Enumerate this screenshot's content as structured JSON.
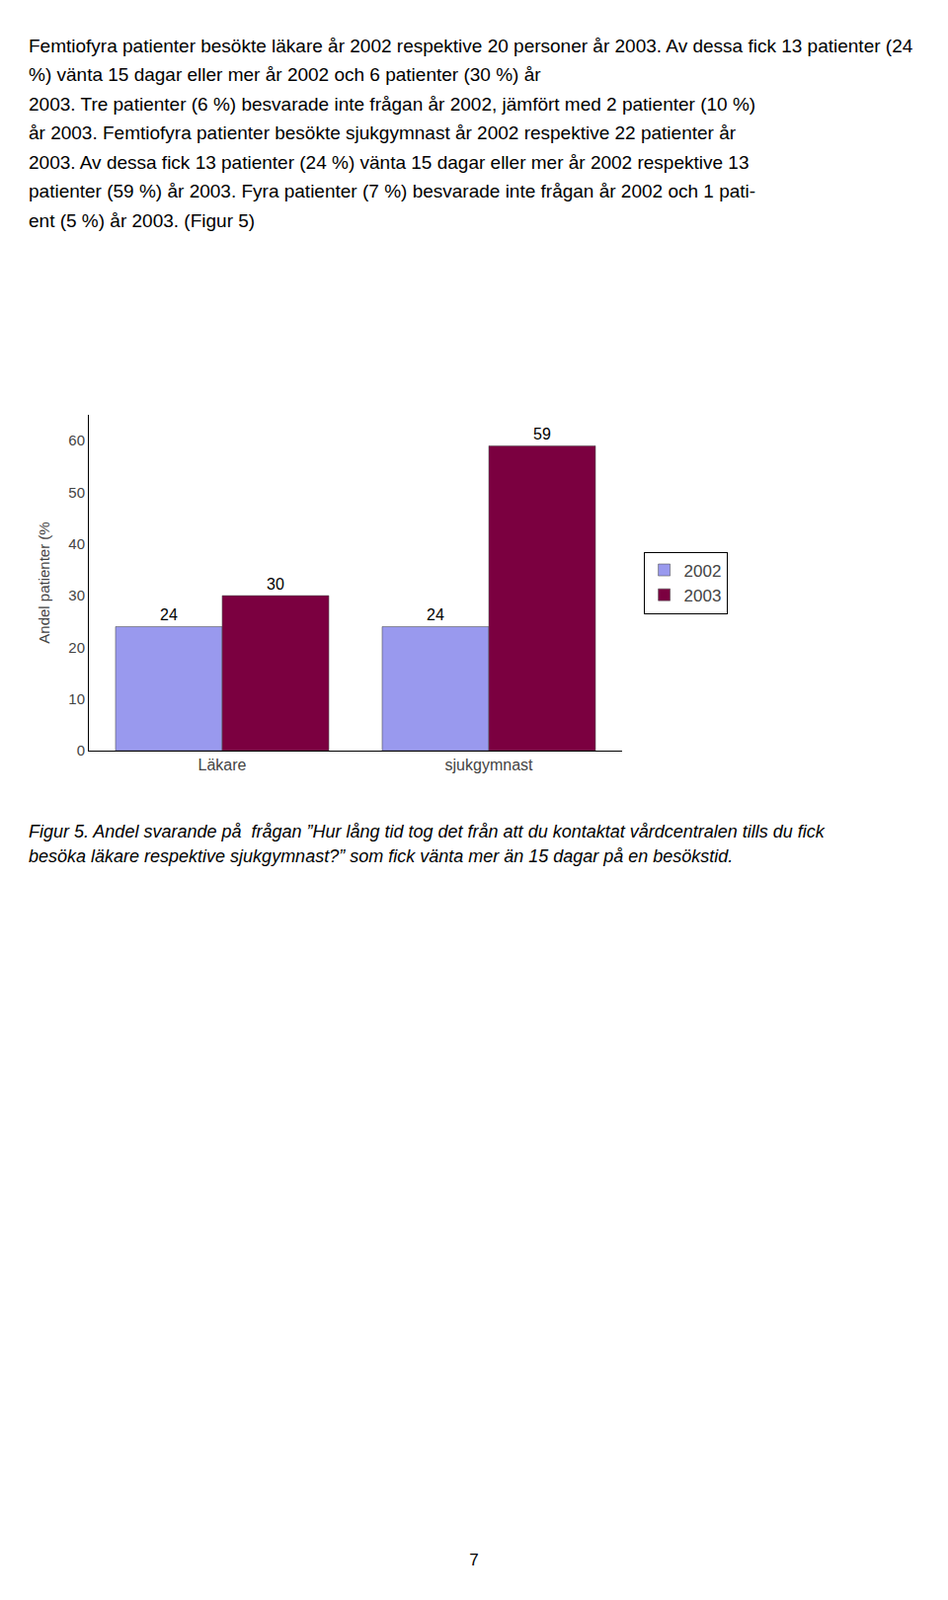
{
  "chart_data": {
    "type": "bar",
    "categories": [
      "Läkare",
      "sjukgymnast"
    ],
    "series": [
      {
        "name": "2002",
        "color": "#9999ee",
        "values": [
          24,
          24
        ]
      },
      {
        "name": "2003",
        "color": "#7b0040",
        "values": [
          30,
          59
        ]
      }
    ],
    "ylabel": "Andel patienter (%",
    "ylim": [
      0,
      65
    ],
    "yticks": [
      0,
      10,
      20,
      30,
      40,
      50,
      60
    ],
    "grid": false,
    "legend": "right",
    "data_labels": true
  },
  "body_text": [
    "Femtiofyra patienter besökte läkare år 2002 respektive 20 personer år 2003. Av dessa fick 13 patienter (24 %) vänta 15 dagar eller mer år 2002 och 6 patienter (30 %) år",
    "2003. Tre patienter (6 %) besvarade inte frågan år 2002, jämfört med 2 patienter (10 %)",
    "år 2003. Femtiofyra patienter besökte sjukgymnast år 2002 respektive 22 patienter år",
    "2003. Av dessa fick 13 patienter (24 %) vänta 15 dagar eller mer år 2002 respektive 13",
    "patienter (59 %) år 2003. Fyra patienter (7 %) besvarade inte frågan år 2002 och 1 pati-",
    "ent (5 %) år 2003. (Figur 5)"
  ],
  "caption": [
    "Figur 5. Andel svarande på  frågan ”Hur lång tid tog det från att du kontaktat vårdcentralen tills du fick",
    "besöka läkare respektive sjukgymnast?” som fick vänta mer än 15 dagar på en besökstid."
  ],
  "page_number": "7"
}
